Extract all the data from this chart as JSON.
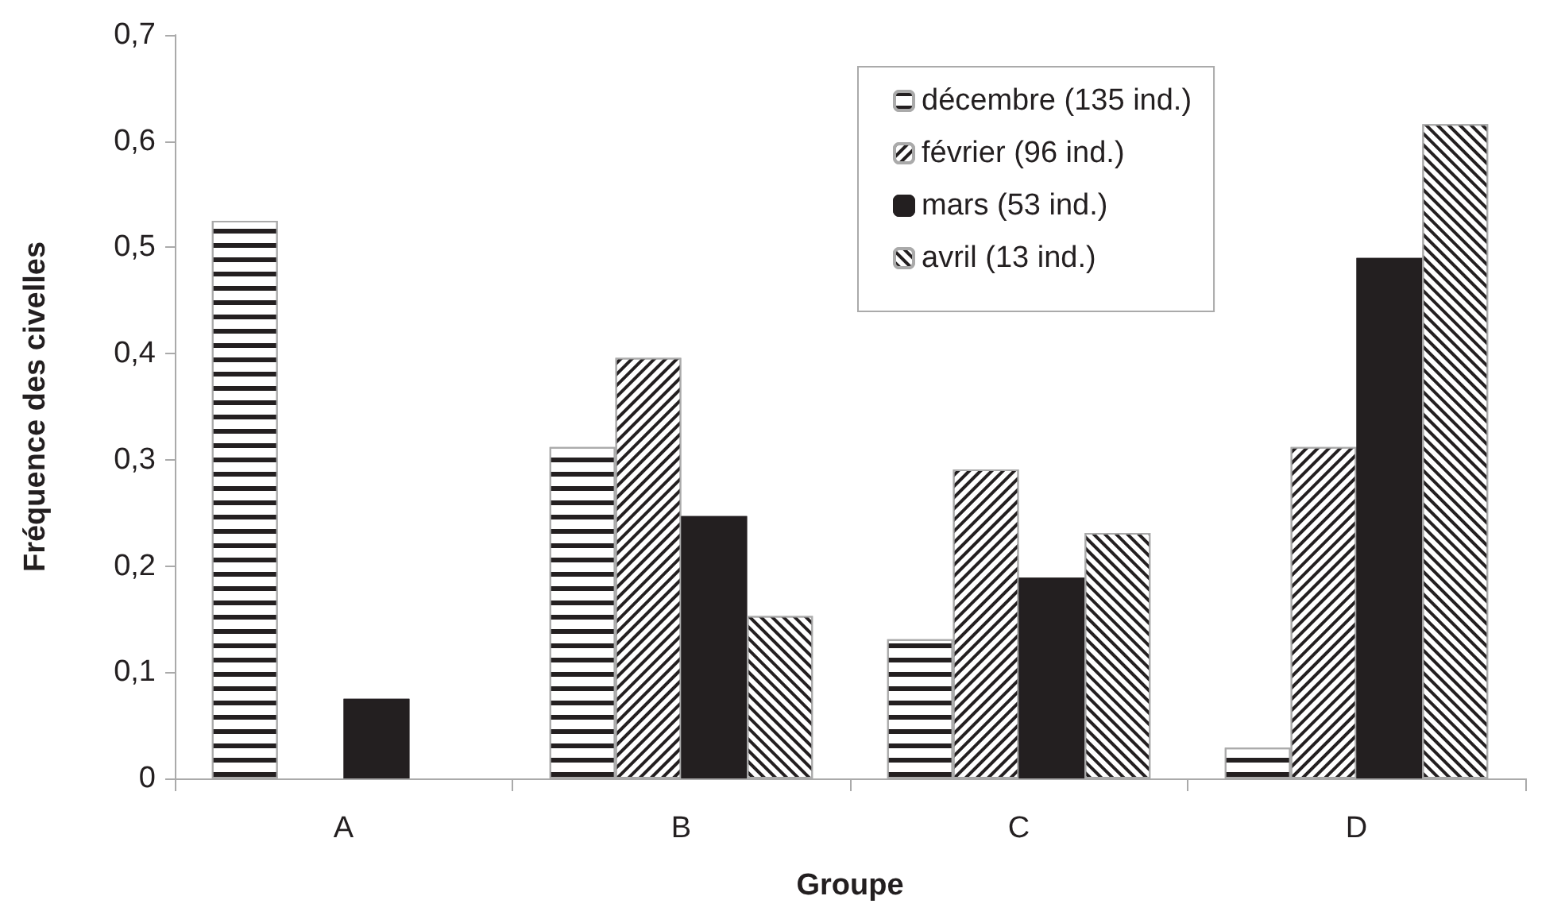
{
  "chart_data": {
    "type": "bar",
    "xlabel": "Groupe",
    "ylabel": "Fréquence des civelles",
    "categories": [
      "A",
      "B",
      "C",
      "D"
    ],
    "series": [
      {
        "name": "décembre (135 ind.)",
        "color": "#ffffff",
        "values": [
          0.525,
          0.312,
          0.131,
          0.029
        ]
      },
      {
        "name": "février (96 ind.)",
        "color": "#ffffff",
        "values": [
          0,
          0.396,
          0.291,
          0.312
        ]
      },
      {
        "name": "mars (53 ind.)",
        "color": "#231f20",
        "values": [
          0.075,
          0.247,
          0.189,
          0.49
        ]
      },
      {
        "name": "avril (13 ind.)",
        "color": "#ffffff",
        "values": [
          0,
          0.153,
          0.231,
          0.616
        ]
      }
    ],
    "ylim": [
      0,
      0.7
    ],
    "yticks": [
      0,
      {
        "value": 0.1,
        "label": "0,1"
      },
      {
        "value": 0.2,
        "label": "0,2"
      },
      {
        "value": 0.3,
        "label": "0,3"
      },
      {
        "value": 0.4,
        "label": "0,4"
      },
      {
        "value": 0.5,
        "label": "0,5"
      },
      {
        "value": 0.6,
        "label": "0,6"
      },
      {
        "value": 0.7,
        "label": "0,7"
      }
    ],
    "grid": false,
    "legend": "top right"
  }
}
